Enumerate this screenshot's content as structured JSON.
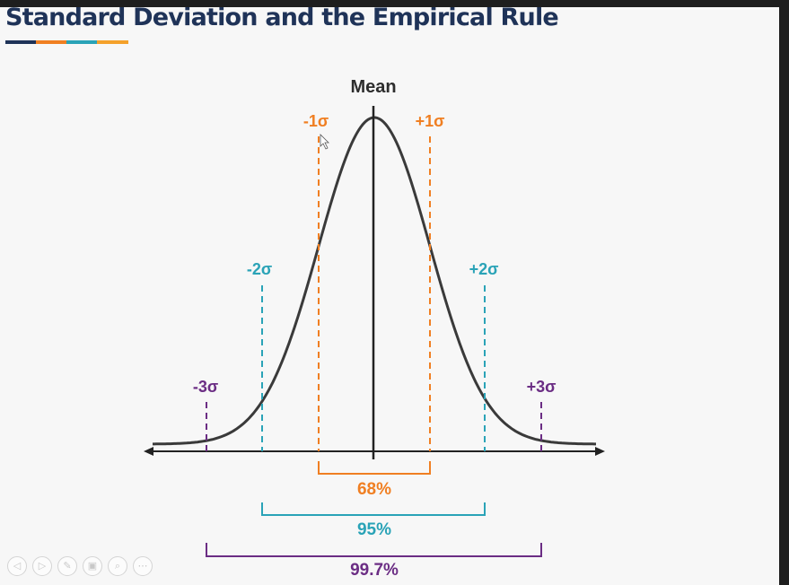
{
  "slide": {
    "title": "Standard Deviation and the Empirical Rule"
  },
  "title_bar_colors": [
    "#1f3358",
    "#f07f22",
    "#2aa3b7",
    "#f4a12b"
  ],
  "diagram": {
    "mean_label": "Mean",
    "sigma_labels": {
      "minus1": "-1σ",
      "plus1": "+1σ",
      "minus2": "-2σ",
      "plus2": "+2σ",
      "minus3": "-3σ",
      "plus3": "+3σ"
    },
    "ranges": {
      "one_sigma": "68%",
      "two_sigma": "95%",
      "three_sigma": "99.7%"
    },
    "colors": {
      "one_sigma": "#f07f22",
      "two_sigma": "#2aa3b7",
      "three_sigma": "#6b2d84",
      "curve": "#3a3a3a",
      "axis": "#222222"
    }
  },
  "controls": [
    {
      "icon": "previous-icon",
      "glyph": "◁"
    },
    {
      "icon": "next-icon",
      "glyph": "▷"
    },
    {
      "icon": "pen-icon",
      "glyph": "✎"
    },
    {
      "icon": "slides-icon",
      "glyph": "▣"
    },
    {
      "icon": "zoom-icon",
      "glyph": "⌕"
    },
    {
      "icon": "more-icon",
      "glyph": "⋯"
    }
  ]
}
